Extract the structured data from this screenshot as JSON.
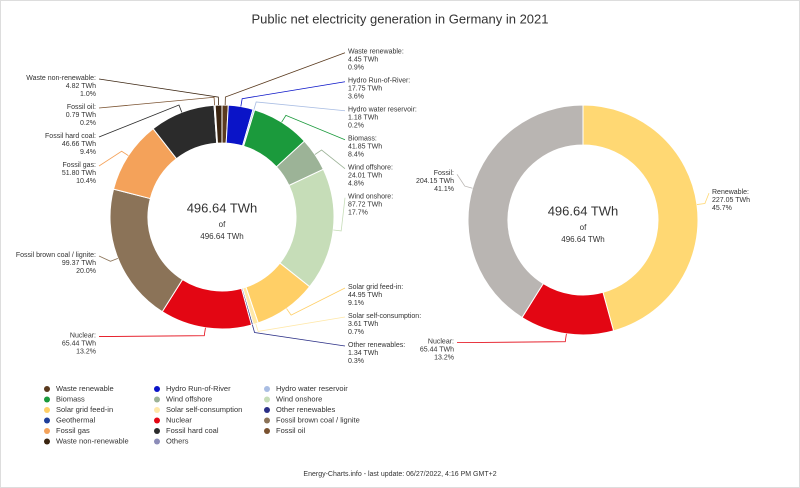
{
  "title": "Public net electricity generation in Germany in 2021",
  "footer": "Energy-Charts.info - last update: 06/27/2022, 4:16 PM GMT+2",
  "chart_data": [
    {
      "type": "pie",
      "labels": [
        "Waste renewable:",
        "Hydro Run-of-River:",
        "Hydro water reservoir:",
        "Biomass:",
        "Wind offshore:",
        "Wind onshore:",
        "Solar grid feed-in:",
        "Solar self-consumption:",
        "Other renewables:",
        "Nuclear:",
        "Fossil brown coal / lignite:",
        "Fossil gas:",
        "Fossil hard coal:",
        "Fossil oil:",
        "Waste non-renewable:"
      ],
      "values": [
        4.45,
        17.75,
        1.18,
        41.85,
        24.01,
        87.72,
        44.95,
        3.61,
        1.34,
        65.44,
        99.37,
        51.8,
        46.66,
        0.79,
        4.82
      ],
      "value_labels": [
        "4.45 TWh",
        "17.75 TWh",
        "1.18 TWh",
        "41.85 TWh",
        "24.01 TWh",
        "87.72 TWh",
        "44.95 TWh",
        "3.61 TWh",
        "1.34 TWh",
        "65.44 TWh",
        "99.37 TWh",
        "51.80 TWh",
        "46.66 TWh",
        "0.79 TWh",
        "4.82 TWh"
      ],
      "percent_labels": [
        "0.9%",
        "3.6%",
        "0.2%",
        "8.4%",
        "4.8%",
        "17.7%",
        "9.1%",
        "0.7%",
        "0.3%",
        "13.2%",
        "20.0%",
        "10.4%",
        "9.4%",
        "0.2%",
        "1.0%"
      ],
      "colors": [
        "#5a3a1e",
        "#0a14c8",
        "#a9bde3",
        "#1b9a3c",
        "#9cb397",
        "#c6ddb8",
        "#ffcf66",
        "#ffe8a8",
        "#2b2f86",
        "#e30613",
        "#8b7358",
        "#f4a25a",
        "#2b2b2b",
        "#7a5230",
        "#3a2410"
      ],
      "center_label": "496.64 TWh",
      "center_of": "of",
      "center_total": "496.64 TWh",
      "legend": [
        {
          "name": "Waste renewable",
          "color": "#5a3a1e"
        },
        {
          "name": "Hydro Run-of-River",
          "color": "#0a14c8"
        },
        {
          "name": "Hydro water reservoir",
          "color": "#a9bde3"
        },
        {
          "name": "Biomass",
          "color": "#1b9a3c"
        },
        {
          "name": "Wind offshore",
          "color": "#9cb397"
        },
        {
          "name": "Wind onshore",
          "color": "#c6ddb8"
        },
        {
          "name": "Solar grid feed-in",
          "color": "#ffcf66"
        },
        {
          "name": "Solar self-consumption",
          "color": "#ffe8a8"
        },
        {
          "name": "Other renewables",
          "color": "#2b2f86"
        },
        {
          "name": "Geothermal",
          "color": "#1f3f9a"
        },
        {
          "name": "Nuclear",
          "color": "#e30613"
        },
        {
          "name": "Fossil brown coal / lignite",
          "color": "#8b7358"
        },
        {
          "name": "Fossil gas",
          "color": "#f4a25a"
        },
        {
          "name": "Fossil hard coal",
          "color": "#2b2b2b"
        },
        {
          "name": "Fossil oil",
          "color": "#7a5230"
        },
        {
          "name": "Waste non-renewable",
          "color": "#3a2410"
        },
        {
          "name": "Others",
          "color": "#8c8cb8"
        }
      ]
    },
    {
      "type": "pie",
      "labels": [
        "Renewable:",
        "Nuclear:",
        "Fossil:"
      ],
      "values": [
        227.05,
        65.44,
        204.15
      ],
      "value_labels": [
        "227.05 TWh",
        "65.44 TWh",
        "204.15 TWh"
      ],
      "percent_labels": [
        "45.7%",
        "13.2%",
        "41.1%"
      ],
      "colors": [
        "#ffd873",
        "#e30613",
        "#b9b5b2"
      ],
      "center_label": "496.64 TWh",
      "center_of": "of",
      "center_total": "496.64 TWh"
    }
  ]
}
